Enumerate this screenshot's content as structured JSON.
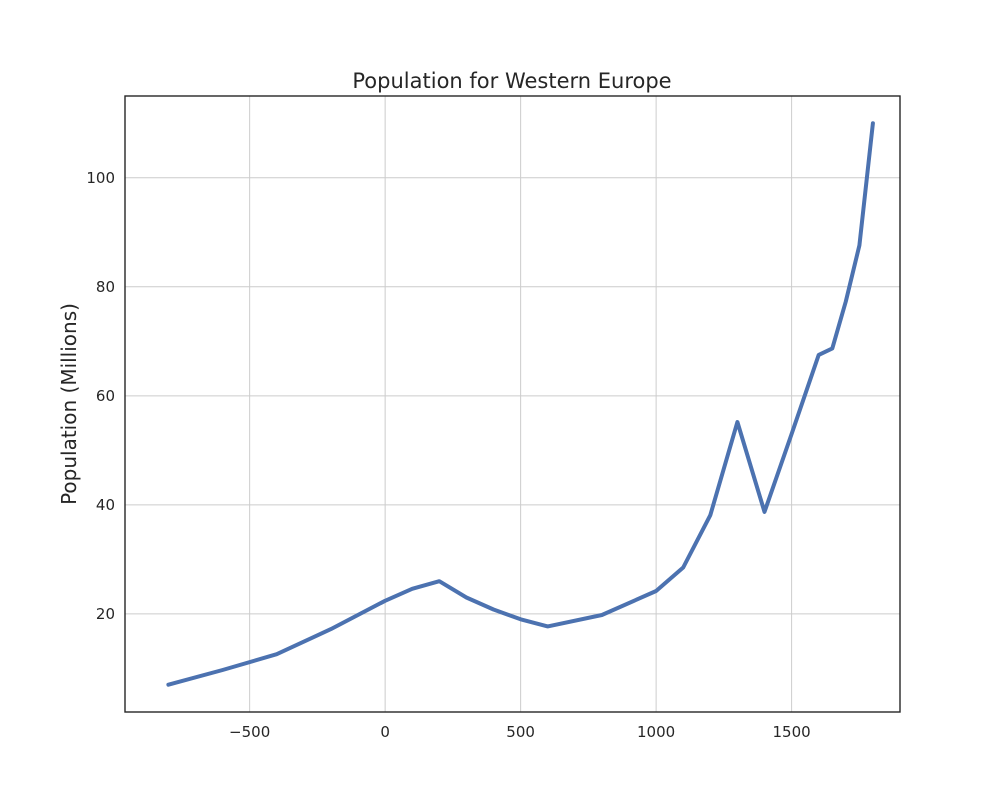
{
  "chart_data": {
    "type": "line",
    "title": "Population for Western Europe",
    "xlabel": "",
    "ylabel": "Population (Millions)",
    "xlim": [
      -960,
      1900
    ],
    "ylim": [
      2,
      115
    ],
    "xticks": [
      -500,
      0,
      500,
      1000,
      1500
    ],
    "xtick_labels": [
      "−500",
      "0",
      "500",
      "1000",
      "1500"
    ],
    "yticks": [
      20,
      40,
      60,
      80,
      100
    ],
    "ytick_labels": [
      "20",
      "40",
      "60",
      "80",
      "100"
    ],
    "grid": true,
    "legend": false,
    "series": [
      {
        "color": "#4c72b0",
        "x": [
          -800,
          -600,
          -400,
          -200,
          0,
          100,
          200,
          300,
          400,
          500,
          600,
          800,
          1000,
          1100,
          1200,
          1300,
          1400,
          1500,
          1600,
          1650,
          1700,
          1750,
          1800
        ],
        "y": [
          7.0,
          9.7,
          12.6,
          17.2,
          22.4,
          24.6,
          26.0,
          23.0,
          20.8,
          19.0,
          17.7,
          19.8,
          24.2,
          28.5,
          38.1,
          55.2,
          38.7,
          53.0,
          67.5,
          68.7,
          77.3,
          87.6,
          110.0
        ]
      }
    ]
  }
}
